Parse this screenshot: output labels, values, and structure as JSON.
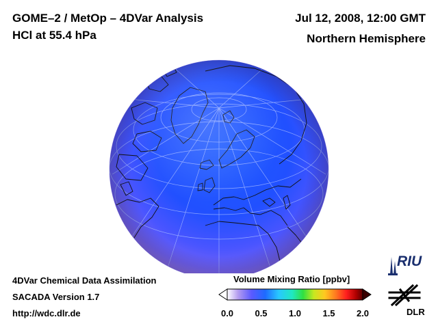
{
  "header": {
    "title": "GOME–2 / MetOp – 4DVar Analysis",
    "subtitle": "HCl at 55.4 hPa",
    "date": "Jul 12, 2008, 12:00 GMT",
    "region": "Northern Hemisphere"
  },
  "footer": {
    "line1": "4DVar Chemical Data Assimilation",
    "line2": "SACADA Version 1.7",
    "line3": "http://wdc.dlr.de"
  },
  "colorbar": {
    "title": "Volume Mixing Ratio [ppbv]",
    "min": 0.0,
    "max": 2.0,
    "ticks": [
      "0.0",
      "0.5",
      "1.0",
      "1.5",
      "2.0"
    ]
  },
  "logos": {
    "riu": "RIU",
    "dlr": "DLR"
  },
  "colors": {
    "globe_center": "#1f5cff",
    "globe_mid": "#2d4dff",
    "globe_edge": "#8a6cf0",
    "coastline": "#111111",
    "graticule": "#9bb0ff"
  }
}
